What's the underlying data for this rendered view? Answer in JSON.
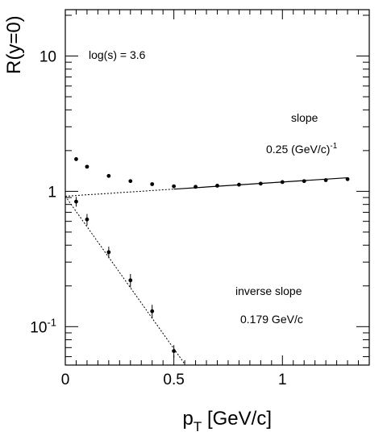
{
  "chart_data": {
    "type": "scatter",
    "title": "",
    "xlabel": "p_T [GeV/c]",
    "ylabel": "R(y=0)",
    "xlim": [
      0,
      1.4
    ],
    "ylim": [
      0.052,
      22
    ],
    "yscale": "log",
    "grid": false,
    "legend": "none",
    "x_ticks": [
      {
        "value": 0,
        "label": "0"
      },
      {
        "value": 0.5,
        "label": "0.5"
      },
      {
        "value": 1,
        "label": "1"
      }
    ],
    "y_ticks": [
      {
        "value": 0.1,
        "base": "10",
        "exp": "-1"
      },
      {
        "value": 1,
        "base": "1",
        "exp": ""
      },
      {
        "value": 10,
        "base": "10",
        "exp": ""
      }
    ],
    "series": [
      {
        "x": [
          0.05,
          0.1,
          0.2,
          0.3,
          0.4,
          0.5,
          0.6,
          0.7,
          0.8,
          0.9,
          1.0,
          1.1,
          1.2,
          1.3
        ],
        "y": [
          1.73,
          1.52,
          1.3,
          1.19,
          1.13,
          1.09,
          1.08,
          1.1,
          1.12,
          1.14,
          1.17,
          1.19,
          1.21,
          1.23
        ]
      },
      {
        "x": [
          0.05,
          0.1,
          0.2,
          0.3,
          0.4,
          0.5
        ],
        "y": [
          0.84,
          0.62,
          0.355,
          0.22,
          0.13,
          0.066
        ],
        "yerr": [
          0.07,
          0.06,
          0.035,
          0.025,
          0.015,
          0.007
        ]
      }
    ],
    "fits": [
      {
        "x": [
          0,
          1.3
        ],
        "y": [
          0.92,
          1.26
        ],
        "style": "solid-on-data, dotted-extension"
      },
      {
        "x": [
          0,
          0.55
        ],
        "y": [
          0.92,
          0.053
        ],
        "style": "dotted"
      }
    ],
    "annotations": {
      "energy": "log(s) = 3.6",
      "slope_title": "slope",
      "slope_value": "0.25 (GeV/c)",
      "slope_exp": "-1",
      "inv_title": "inverse slope",
      "inv_value": "0.179 GeV/c"
    }
  }
}
